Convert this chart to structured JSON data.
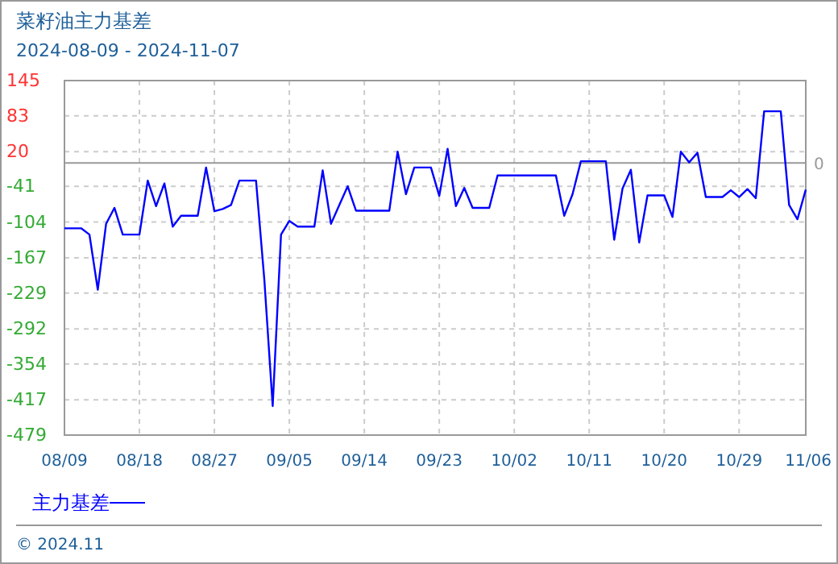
{
  "chart_data": {
    "type": "line",
    "title": "菜籽油主力基差",
    "subtitle": "2024-08-09 - 2024-11-07",
    "x": [
      "2024-08-09",
      "2024-08-11",
      "2024-08-12",
      "2024-08-13",
      "2024-08-14",
      "2024-08-15",
      "2024-08-16",
      "2024-08-18",
      "2024-08-19",
      "2024-08-20",
      "2024-08-21",
      "2024-08-22",
      "2024-08-23",
      "2024-08-25",
      "2024-08-26",
      "2024-08-27",
      "2024-08-28",
      "2024-08-29",
      "2024-08-30",
      "2024-09-01",
      "2024-09-02",
      "2024-09-03",
      "2024-09-04",
      "2024-09-05",
      "2024-09-06",
      "2024-09-08",
      "2024-09-09",
      "2024-09-10",
      "2024-09-12",
      "2024-09-13",
      "2024-09-17",
      "2024-09-18",
      "2024-09-19",
      "2024-09-20",
      "2024-09-22",
      "2024-09-23",
      "2024-09-24",
      "2024-09-25",
      "2024-09-26",
      "2024-09-27",
      "2024-09-29",
      "2024-09-30",
      "2024-10-07",
      "2024-10-08",
      "2024-10-09",
      "2024-10-10",
      "2024-10-13",
      "2024-10-14",
      "2024-10-15",
      "2024-10-16",
      "2024-10-17",
      "2024-10-18",
      "2024-10-20",
      "2024-10-21",
      "2024-10-22",
      "2024-10-23",
      "2024-10-24",
      "2024-10-25",
      "2024-10-27",
      "2024-10-28",
      "2024-10-29",
      "2024-10-30",
      "2024-10-31",
      "2024-11-01",
      "2024-11-03",
      "2024-11-04",
      "2024-11-05",
      "2024-11-06"
    ],
    "series": [
      {
        "name": "主力基差",
        "color": "#0000ff",
        "values": [
          -115,
          -115,
          -126,
          -223,
          -107,
          -79,
          -126,
          -126,
          -31,
          -76,
          -36,
          -112,
          -93,
          -93,
          -8,
          -85,
          -81,
          -74,
          -31,
          -31,
          -206,
          -428,
          -126,
          -102,
          -112,
          -112,
          -13,
          -107,
          -41,
          -84,
          -84,
          20,
          -55,
          -8,
          -8,
          -58,
          25,
          -76,
          -44,
          -79,
          -79,
          -22,
          -22,
          -93,
          -55,
          3,
          3,
          -135,
          -45,
          -12,
          -140,
          -57,
          -57,
          -95,
          20,
          1,
          18,
          -60,
          -60,
          -48,
          -60,
          -46,
          -62,
          91,
          91,
          -74,
          -99,
          -47
        ]
      }
    ],
    "xlim": [
      "2024-08-09",
      "2024-11-06"
    ],
    "xticks": [
      {
        "value": "2024-08-09",
        "label": "08/09"
      },
      {
        "value": "2024-08-18",
        "label": "08/18"
      },
      {
        "value": "2024-08-27",
        "label": "08/27"
      },
      {
        "value": "2024-09-05",
        "label": "09/05"
      },
      {
        "value": "2024-09-14",
        "label": "09/14"
      },
      {
        "value": "2024-09-23",
        "label": "09/23"
      },
      {
        "value": "2024-10-02",
        "label": "10/02"
      },
      {
        "value": "2024-10-11",
        "label": "10/11"
      },
      {
        "value": "2024-10-20",
        "label": "10/20"
      },
      {
        "value": "2024-10-29",
        "label": "10/29"
      },
      {
        "value": "2024-11-06",
        "label": "11/06"
      }
    ],
    "ylim": [
      -479,
      145
    ],
    "yticks": [
      145,
      83,
      20,
      -41,
      -104,
      -167,
      -229,
      -292,
      -354,
      -417,
      -479
    ],
    "ref_lines": [
      {
        "axis": "y",
        "value": 0,
        "label": "0",
        "color": "#999999"
      }
    ],
    "grid": true,
    "legend": "bottom left",
    "line_style": "solid",
    "marker": "none",
    "annotations": [
      "© 2024.11"
    ]
  }
}
